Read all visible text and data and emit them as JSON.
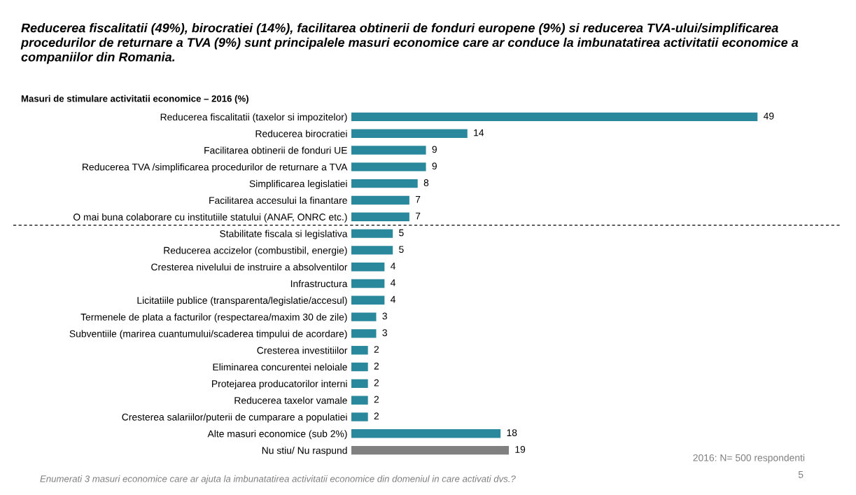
{
  "chart_data": {
    "type": "bar",
    "orientation": "horizontal",
    "title": "Reducerea fiscalitatii (49%), birocratiei (14%), facilitarea obtinerii de fonduri europene (9%) si reducerea TVA-ului/simplificarea procedurilor de returnare a TVA (9%) sunt principalele masuri economice care ar conduce la imbunatatirea activitatii economice a companiilor din Romania.",
    "subtitle": "Masuri de stimulare activitatii economice – 2016 (%)",
    "categories": [
      "Reducerea fiscalitatii (taxelor si impozitelor)",
      "Reducerea birocratiei",
      "Facilitarea obtinerii de fonduri UE",
      "Reducerea TVA /simplificarea procedurilor de returnare a TVA",
      "Simplificarea legislatiei",
      "Facilitarea accesului la finantare",
      "O mai buna colaborare cu institutiile statului (ANAF, ONRC etc.)",
      "Stabilitate fiscala si legislativa",
      "Reducerea accizelor (combustibil, energie)",
      "Cresterea nivelului de instruire a absolventilor",
      "Infrastructura",
      "Licitatiile publice (transparenta/legislatie/accesul)",
      "Termenele de plata a facturilor (respectarea/maxim 30 de zile)",
      "Subventiile (marirea cuantumului/scaderea timpului de acordare)",
      "Cresterea investitiilor",
      "Eliminarea concurentei neloiale",
      "Protejarea producatorilor interni",
      "Reducerea taxelor vamale",
      "Cresterea salariilor/puterii de cumparare a populatiei",
      "Alte masuri economice (sub 2%)",
      "Nu stiu/ Nu raspund"
    ],
    "values": [
      49,
      14,
      9,
      9,
      8,
      7,
      7,
      5,
      5,
      4,
      4,
      4,
      3,
      3,
      2,
      2,
      2,
      2,
      2,
      18,
      19
    ],
    "colors": [
      "#2a889c",
      "#2a889c",
      "#2a889c",
      "#2a889c",
      "#2a889c",
      "#2a889c",
      "#2a889c",
      "#2a889c",
      "#2a889c",
      "#2a889c",
      "#2a889c",
      "#2a889c",
      "#2a889c",
      "#2a889c",
      "#2a889c",
      "#2a889c",
      "#2a889c",
      "#2a889c",
      "#2a889c",
      "#2a889c",
      "#808080"
    ],
    "data_labels": true,
    "annotations": [
      "2016: N= 500 respondenti",
      "Enumerati 3 masuri economice care ar ajuta la imbunatatirea activitatii economice din domeniul in care activati dvs.?",
      "5"
    ]
  }
}
